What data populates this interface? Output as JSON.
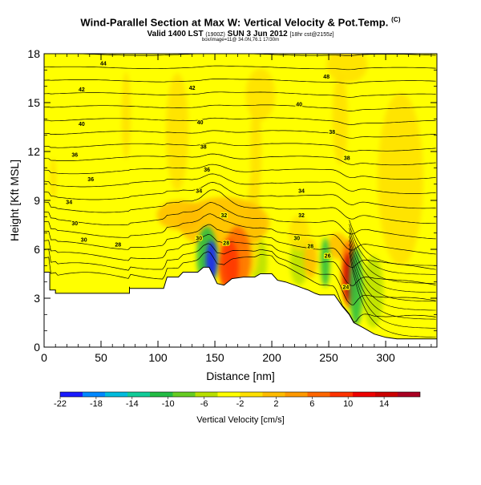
{
  "header": {
    "title": "Wind-Parallel Section at Max W: Vertical Velocity & Pot.Temp.",
    "copyright": "(C)",
    "valid_main": "Valid 1400 LST",
    "valid_paren": "(1900Z)",
    "valid_date": "SUN 3 Jun 2012",
    "valid_suffix": "[18hr cst@2155z]",
    "subline": "box/image=11@ 34.0N,76.1 17/30m"
  },
  "chart_data": {
    "type": "heatmap",
    "xlabel": "Distance [nm]",
    "ylabel": "Height [Kft MSL]",
    "xlim": [
      0,
      345
    ],
    "ylim": [
      0,
      18
    ],
    "xticks": [
      0,
      50,
      100,
      150,
      200,
      250,
      300
    ],
    "yticks": [
      0,
      3,
      6,
      9,
      12,
      15,
      18
    ],
    "colorbar": {
      "title": "Vertical Velocity [cm/s]",
      "range": [
        -22,
        18
      ],
      "labels": [
        -22,
        -18,
        -14,
        -10,
        -6,
        -2,
        2,
        6,
        10,
        14
      ],
      "colors": [
        "#1a1aff",
        "#0088ff",
        "#00bbdd",
        "#11cc99",
        "#22bb44",
        "#66cc22",
        "#b8e000",
        "#ffff00",
        "#ffe000",
        "#ffbb00",
        "#ff9900",
        "#ff6600",
        "#ff3300",
        "#ee0000",
        "#cc0000",
        "#aa0022"
      ]
    },
    "background_color": "#ffff00",
    "terrain": [
      [
        0,
        0
      ],
      [
        0,
        4.6
      ],
      [
        5,
        4.6
      ],
      [
        5,
        3.5
      ],
      [
        10,
        3.5
      ],
      [
        10,
        3.3
      ],
      [
        40,
        3.3
      ],
      [
        75,
        3.3
      ],
      [
        75,
        3.7
      ],
      [
        75,
        3.6
      ],
      [
        90,
        3.6
      ],
      [
        95,
        3.6
      ],
      [
        105,
        3.6
      ],
      [
        108,
        4.3
      ],
      [
        118,
        4.3
      ],
      [
        122,
        4.6
      ],
      [
        135,
        4.6
      ],
      [
        140,
        4.9
      ],
      [
        145,
        4.9
      ],
      [
        152,
        3.9
      ],
      [
        158,
        3.8
      ],
      [
        165,
        4.2
      ],
      [
        175,
        4.3
      ],
      [
        185,
        4.3
      ],
      [
        190,
        4.5
      ],
      [
        200,
        4.5
      ],
      [
        205,
        4.1
      ],
      [
        212,
        4.0
      ],
      [
        220,
        3.8
      ],
      [
        228,
        3.6
      ],
      [
        232,
        3.5
      ],
      [
        238,
        3.3
      ],
      [
        242,
        3.2
      ],
      [
        248,
        3.2
      ],
      [
        255,
        3.2
      ],
      [
        262,
        2.5
      ],
      [
        268,
        2.0
      ],
      [
        272,
        1.5
      ],
      [
        280,
        1.2
      ],
      [
        290,
        0.8
      ],
      [
        300,
        0.6
      ],
      [
        310,
        0.5
      ],
      [
        345,
        0.5
      ],
      [
        345,
        0
      ]
    ],
    "isentropes": [
      {
        "label": "44",
        "x": 52,
        "y": 17.4
      },
      {
        "label": "48",
        "x": 248,
        "y": 16.6
      },
      {
        "label": "42",
        "x": 33,
        "y": 15.8
      },
      {
        "label": "42",
        "x": 130,
        "y": 15.9
      },
      {
        "label": "40",
        "x": 224,
        "y": 14.9
      },
      {
        "label": "40",
        "x": 33,
        "y": 13.7
      },
      {
        "label": "40",
        "x": 137,
        "y": 13.8
      },
      {
        "label": "38",
        "x": 253,
        "y": 13.2
      },
      {
        "label": "38",
        "x": 140,
        "y": 12.3
      },
      {
        "label": "36",
        "x": 27,
        "y": 11.8
      },
      {
        "label": "38",
        "x": 266,
        "y": 11.6
      },
      {
        "label": "36",
        "x": 143,
        "y": 10.9
      },
      {
        "label": "36",
        "x": 41,
        "y": 10.3
      },
      {
        "label": "34",
        "x": 136,
        "y": 9.6
      },
      {
        "label": "34",
        "x": 226,
        "y": 9.6
      },
      {
        "label": "34",
        "x": 22,
        "y": 8.9
      },
      {
        "label": "32",
        "x": 158,
        "y": 8.1
      },
      {
        "label": "32",
        "x": 226,
        "y": 8.1
      },
      {
        "label": "30",
        "x": 27,
        "y": 7.6
      },
      {
        "label": "30",
        "x": 136,
        "y": 6.7
      },
      {
        "label": "30",
        "x": 222,
        "y": 6.7
      },
      {
        "label": "30",
        "x": 35,
        "y": 6.6
      },
      {
        "label": "28",
        "x": 65,
        "y": 6.3
      },
      {
        "label": "28",
        "x": 160,
        "y": 6.4
      },
      {
        "label": "28",
        "x": 234,
        "y": 6.2
      },
      {
        "label": "26",
        "x": 249,
        "y": 5.6
      },
      {
        "label": "24",
        "x": 265,
        "y": 3.7
      }
    ],
    "updraft_regions": [
      {
        "x": 162,
        "y": 5.0,
        "rx": 9,
        "ry": 1.6,
        "value": 10
      },
      {
        "x": 170,
        "y": 5.4,
        "rx": 12,
        "ry": 2.0,
        "value": 6
      },
      {
        "x": 158,
        "y": 7.6,
        "rx": 40,
        "ry": 1.6,
        "value": 2
      },
      {
        "x": 267,
        "y": 4.3,
        "rx": 4,
        "ry": 1.5,
        "value": 14
      },
      {
        "x": 268,
        "y": 4.5,
        "rx": 7,
        "ry": 2.1,
        "value": 6
      },
      {
        "x": 258,
        "y": 6.2,
        "rx": 9,
        "ry": 0.8,
        "value": 2
      },
      {
        "x": 234,
        "y": 5.4,
        "rx": 6,
        "ry": 1.2,
        "value": 2
      },
      {
        "x": 119,
        "y": 8.1,
        "rx": 20,
        "ry": 0.9,
        "value": 2
      }
    ],
    "downdraft_regions": [
      {
        "x": 147,
        "y": 5.3,
        "rx": 5,
        "ry": 1.2,
        "value": -22
      },
      {
        "x": 143,
        "y": 5.6,
        "rx": 9,
        "ry": 1.8,
        "value": -10
      },
      {
        "x": 189,
        "y": 5.2,
        "rx": 7,
        "ry": 1.5,
        "value": -6
      },
      {
        "x": 224,
        "y": 5.2,
        "rx": 8,
        "ry": 1.4,
        "value": -6
      },
      {
        "x": 247,
        "y": 5.2,
        "rx": 4,
        "ry": 1.5,
        "value": -10
      },
      {
        "x": 274,
        "y": 3.7,
        "rx": 6,
        "ry": 2.4,
        "value": -10
      },
      {
        "x": 289,
        "y": 3.4,
        "rx": 9,
        "ry": 2.2,
        "value": -6
      },
      {
        "x": 72,
        "y": 14.2,
        "rx": 4,
        "ry": 2.7,
        "value": -2
      },
      {
        "x": 117,
        "y": 13.2,
        "rx": 10,
        "ry": 3.6,
        "value": -2
      },
      {
        "x": 190,
        "y": 15.5,
        "rx": 13,
        "ry": 1.6,
        "value": -2
      },
      {
        "x": 186,
        "y": 12.0,
        "rx": 5,
        "ry": 3.1,
        "value": -2
      },
      {
        "x": 184,
        "y": 7.5,
        "rx": 6,
        "ry": 3.0,
        "value": -2
      },
      {
        "x": 266,
        "y": 17.3,
        "rx": 18,
        "ry": 1.1,
        "value": -2
      },
      {
        "x": 260,
        "y": 14.0,
        "rx": 7,
        "ry": 2.8,
        "value": -2
      },
      {
        "x": 313,
        "y": 10.3,
        "rx": 20,
        "ry": 5.3,
        "value": -2
      },
      {
        "x": 8,
        "y": 10.3,
        "rx": 3,
        "ry": 1.3,
        "value": -2
      },
      {
        "x": 224,
        "y": 7.0,
        "rx": 9,
        "ry": 1.1,
        "value": -2
      }
    ]
  }
}
